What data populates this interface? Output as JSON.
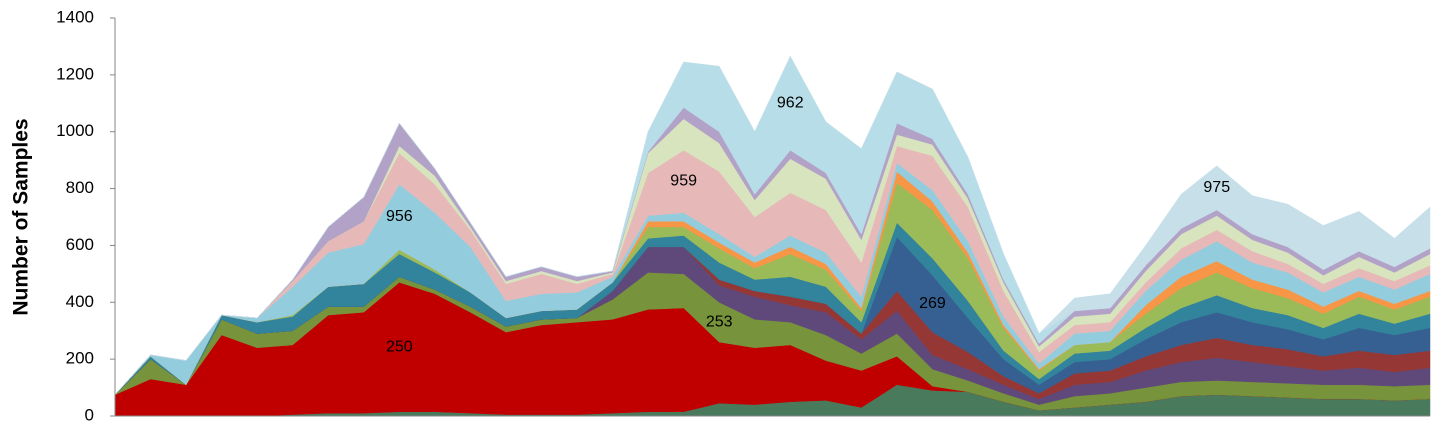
{
  "chart_data": {
    "type": "stacked_area",
    "y_label": "Number of Samples",
    "categories": [
      null,
      null,
      null,
      null,
      null,
      null,
      null,
      null,
      null,
      null,
      null,
      null,
      null,
      null,
      null,
      null,
      null,
      null,
      null,
      null,
      null,
      null,
      null,
      null,
      null,
      null,
      null,
      null,
      null,
      null,
      null,
      null,
      null,
      null,
      null,
      null,
      null,
      null
    ],
    "ylim": [
      0,
      1400
    ],
    "yticks": [
      0,
      200,
      400,
      600,
      800,
      1000,
      1200,
      1400
    ],
    "series": [
      {
        "color": "#4a7a5c",
        "values": [
          0,
          0,
          0,
          0,
          0,
          5,
          10,
          10,
          15,
          15,
          10,
          5,
          5,
          5,
          10,
          15,
          15,
          45,
          40,
          50,
          55,
          30,
          110,
          90,
          85,
          50,
          20,
          30,
          40,
          50,
          70,
          75,
          70,
          65,
          60,
          60,
          55,
          60
        ]
      },
      {
        "name": "250",
        "color": "#c00000",
        "values": [
          75,
          130,
          110,
          285,
          240,
          245,
          345,
          355,
          455,
          415,
          355,
          290,
          315,
          325,
          330,
          360,
          365,
          215,
          200,
          200,
          140,
          130,
          100,
          15,
          0,
          0,
          0,
          0,
          0,
          0,
          0,
          0,
          0,
          0,
          0,
          0,
          0,
          0
        ]
      },
      {
        "name": "253",
        "color": "#77933c",
        "values": [
          0,
          70,
          0,
          55,
          50,
          50,
          30,
          20,
          20,
          15,
          20,
          20,
          20,
          15,
          70,
          130,
          120,
          140,
          100,
          80,
          90,
          60,
          80,
          60,
          40,
          30,
          20,
          40,
          40,
          50,
          50,
          50,
          50,
          50,
          50,
          50,
          50,
          50
        ]
      },
      {
        "color": "#5f497a",
        "values": [
          0,
          0,
          0,
          0,
          0,
          0,
          0,
          0,
          0,
          0,
          0,
          0,
          0,
          0,
          30,
          90,
          95,
          60,
          80,
          60,
          80,
          50,
          80,
          50,
          40,
          30,
          20,
          40,
          40,
          60,
          70,
          80,
          70,
          60,
          50,
          60,
          50,
          60
        ]
      },
      {
        "color": "#953735",
        "values": [
          0,
          0,
          0,
          0,
          0,
          0,
          0,
          0,
          0,
          0,
          0,
          0,
          0,
          0,
          0,
          0,
          0,
          20,
          20,
          30,
          30,
          20,
          70,
          80,
          60,
          30,
          20,
          40,
          40,
          50,
          60,
          70,
          60,
          60,
          50,
          60,
          60,
          60
        ]
      },
      {
        "name": "269",
        "color": "#366092",
        "values": [
          0,
          0,
          0,
          0,
          0,
          0,
          0,
          0,
          0,
          0,
          0,
          0,
          0,
          0,
          0,
          0,
          0,
          0,
          0,
          0,
          0,
          0,
          190,
          200,
          120,
          60,
          30,
          40,
          40,
          60,
          80,
          90,
          80,
          70,
          60,
          80,
          70,
          80
        ]
      },
      {
        "color": "#31849b",
        "values": [
          0,
          10,
          0,
          15,
          40,
          50,
          70,
          80,
          80,
          60,
          50,
          30,
          30,
          30,
          30,
          30,
          40,
          60,
          40,
          70,
          60,
          40,
          50,
          60,
          60,
          30,
          20,
          30,
          30,
          40,
          50,
          60,
          50,
          50,
          40,
          50,
          40,
          50
        ]
      },
      {
        "color": "#9bbb59",
        "values": [
          0,
          0,
          0,
          0,
          0,
          5,
          0,
          0,
          15,
          10,
          0,
          0,
          0,
          0,
          0,
          40,
          30,
          50,
          40,
          80,
          60,
          40,
          140,
          170,
          150,
          80,
          30,
          30,
          30,
          50,
          70,
          80,
          70,
          60,
          50,
          60,
          50,
          60
        ]
      },
      {
        "color": "#f79646",
        "values": [
          0,
          0,
          0,
          0,
          0,
          0,
          0,
          0,
          0,
          0,
          0,
          0,
          0,
          0,
          0,
          20,
          20,
          20,
          20,
          25,
          20,
          10,
          40,
          30,
          20,
          10,
          5,
          0,
          0,
          30,
          40,
          40,
          30,
          30,
          25,
          20,
          20,
          20
        ]
      },
      {
        "name": "956",
        "color": "#93cddd",
        "values": [
          0,
          5,
          85,
          0,
          15,
          100,
          120,
          140,
          230,
          200,
          160,
          60,
          60,
          60,
          20,
          20,
          30,
          30,
          20,
          40,
          40,
          40,
          30,
          40,
          40,
          30,
          20,
          40,
          40,
          50,
          60,
          70,
          60,
          60,
          50,
          50,
          50,
          60
        ]
      },
      {
        "name": "959",
        "color": "#e6b9b8",
        "values": [
          0,
          0,
          0,
          0,
          0,
          20,
          40,
          80,
          110,
          100,
          60,
          60,
          70,
          30,
          10,
          150,
          220,
          220,
          140,
          150,
          150,
          120,
          60,
          120,
          120,
          90,
          40,
          30,
          30,
          30,
          40,
          40,
          40,
          30,
          30,
          30,
          30,
          30
        ]
      },
      {
        "color": "#d7e4bd",
        "values": [
          0,
          0,
          0,
          0,
          0,
          0,
          0,
          0,
          25,
          30,
          10,
          10,
          10,
          10,
          5,
          70,
          110,
          100,
          60,
          120,
          110,
          80,
          40,
          40,
          30,
          30,
          20,
          30,
          30,
          40,
          50,
          50,
          40,
          40,
          30,
          40,
          30,
          40
        ]
      },
      {
        "color": "#b3a2c7",
        "values": [
          0,
          0,
          0,
          0,
          0,
          5,
          50,
          85,
          80,
          25,
          15,
          15,
          15,
          15,
          5,
          5,
          40,
          40,
          20,
          30,
          20,
          20,
          40,
          20,
          15,
          10,
          10,
          20,
          20,
          20,
          20,
          20,
          20,
          20,
          20,
          20,
          20,
          20
        ]
      },
      {
        "name": "962",
        "color": "#b7dee8",
        "values": [
          0,
          0,
          0,
          0,
          0,
          0,
          0,
          0,
          0,
          0,
          0,
          0,
          0,
          0,
          0,
          70,
          160,
          230,
          220,
          330,
          180,
          300,
          180,
          175,
          130,
          90,
          35,
          0,
          0,
          0,
          0,
          0,
          0,
          0,
          0,
          0,
          0,
          0
        ]
      },
      {
        "name": "975",
        "color": "#c6dfe9",
        "values": [
          0,
          0,
          0,
          0,
          0,
          0,
          0,
          0,
          0,
          0,
          0,
          0,
          0,
          0,
          0,
          0,
          0,
          0,
          0,
          0,
          0,
          0,
          0,
          0,
          0,
          0,
          0,
          45,
          50,
          70,
          120,
          155,
          135,
          150,
          155,
          140,
          100,
          145
        ]
      }
    ]
  }
}
